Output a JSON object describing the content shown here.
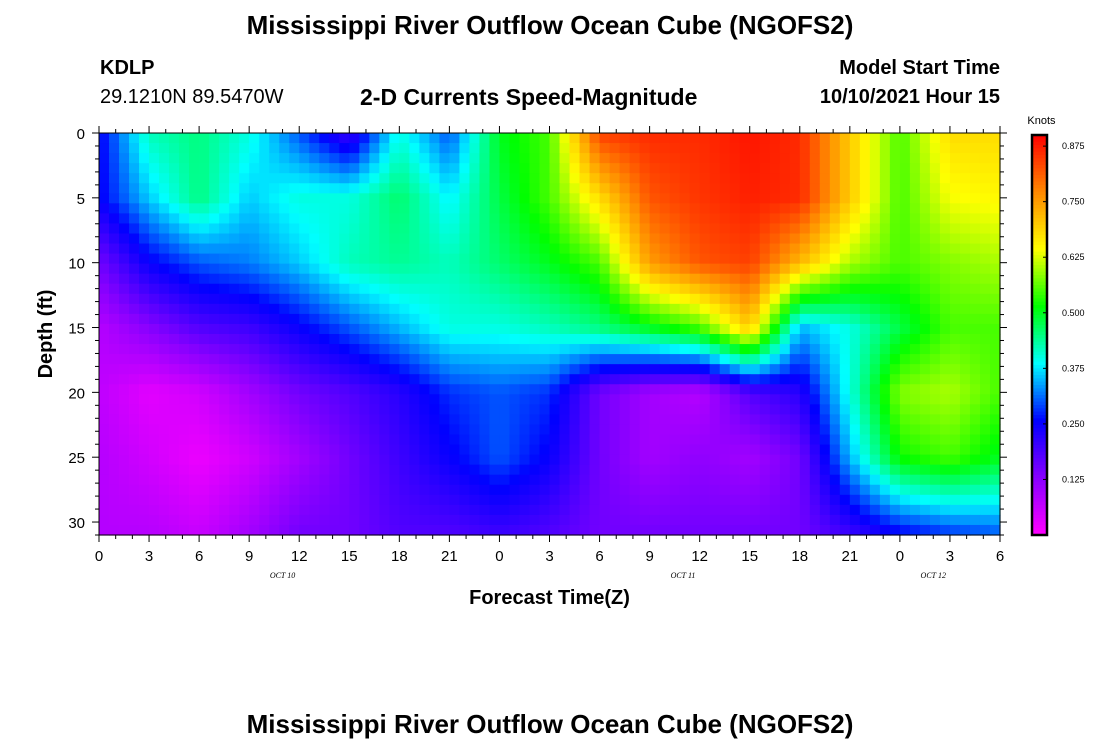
{
  "header": {
    "title": "Mississippi River Outflow Ocean Cube (NGOFS2)",
    "station_id": "KDLP",
    "station_coords": "29.1210N  89.5470W",
    "subtitle": "2-D Currents Speed-Magnitude",
    "model_start_label": "Model Start Time",
    "model_start_value": "10/10/2021 Hour 15"
  },
  "footer": {
    "title": "Mississippi River Outflow Ocean Cube (NGOFS2)"
  },
  "chart_data": {
    "type": "heatmap",
    "xlabel": "Forecast Time(Z)",
    "ylabel": "Depth (ft)",
    "x_tick_labels": [
      "0",
      "3",
      "6",
      "9",
      "12",
      "15",
      "18",
      "21",
      "0",
      "3",
      "6",
      "9",
      "12",
      "15",
      "18",
      "21",
      "0",
      "3",
      "6"
    ],
    "x_date_labels": [
      {
        "label": "OCT 10",
        "hour": 11
      },
      {
        "label": "OCT 11",
        "hour": 35
      },
      {
        "label": "OCT 12",
        "hour": 50
      }
    ],
    "xlim_hours": [
      0,
      54
    ],
    "y_ticks": [
      0,
      5,
      10,
      15,
      20,
      25,
      30
    ],
    "ylim": [
      0,
      31
    ],
    "y_inverted": true,
    "colorbar": {
      "label": "Knots",
      "ticks": [
        0.125,
        0.25,
        0.375,
        0.5,
        0.625,
        0.75,
        0.875
      ],
      "tick_labels": [
        "0.125",
        "0.250",
        "0.375",
        "0.500",
        "0.625",
        "0.750",
        "0.875"
      ],
      "range": [
        0,
        0.9
      ],
      "colors": [
        "#ff00ff",
        "#8800ff",
        "#0000ff",
        "#00ffff",
        "#00ff00",
        "#ffff00",
        "#ff8800",
        "#ff0000"
      ]
    },
    "grid": {
      "hours": [
        0,
        3,
        6,
        9,
        12,
        15,
        18,
        21,
        24,
        27,
        30,
        33,
        36,
        39,
        42,
        45,
        48,
        51,
        54
      ],
      "depths": [
        0,
        5,
        10,
        15,
        20,
        25,
        31
      ],
      "speed": [
        [
          0.25,
          0.42,
          0.45,
          0.4,
          0.3,
          0.2,
          0.4,
          0.3,
          0.5,
          0.55,
          0.84,
          0.86,
          0.86,
          0.88,
          0.86,
          0.7,
          0.55,
          0.68,
          0.68
        ],
        [
          0.25,
          0.36,
          0.45,
          0.36,
          0.4,
          0.4,
          0.46,
          0.38,
          0.48,
          0.55,
          0.68,
          0.82,
          0.85,
          0.87,
          0.86,
          0.7,
          0.55,
          0.64,
          0.65
        ],
        [
          0.15,
          0.25,
          0.3,
          0.32,
          0.36,
          0.42,
          0.44,
          0.42,
          0.46,
          0.5,
          0.55,
          0.75,
          0.82,
          0.84,
          0.72,
          0.6,
          0.55,
          0.58,
          0.6
        ],
        [
          0.08,
          0.13,
          0.18,
          0.2,
          0.25,
          0.3,
          0.35,
          0.4,
          0.4,
          0.42,
          0.45,
          0.5,
          0.55,
          0.7,
          0.35,
          0.4,
          0.48,
          0.55,
          0.55
        ],
        [
          0.07,
          0.03,
          0.05,
          0.1,
          0.15,
          0.18,
          0.22,
          0.28,
          0.3,
          0.28,
          0.15,
          0.1,
          0.08,
          0.18,
          0.22,
          0.4,
          0.58,
          0.6,
          0.55
        ],
        [
          0.08,
          0.05,
          0.02,
          0.05,
          0.1,
          0.15,
          0.2,
          0.25,
          0.3,
          0.25,
          0.15,
          0.1,
          0.12,
          0.1,
          0.15,
          0.35,
          0.52,
          0.55,
          0.5
        ],
        [
          0.08,
          0.08,
          0.06,
          0.1,
          0.15,
          0.15,
          0.18,
          0.18,
          0.2,
          0.18,
          0.15,
          0.15,
          0.15,
          0.15,
          0.15,
          0.2,
          0.25,
          0.28,
          0.3
        ]
      ]
    }
  }
}
